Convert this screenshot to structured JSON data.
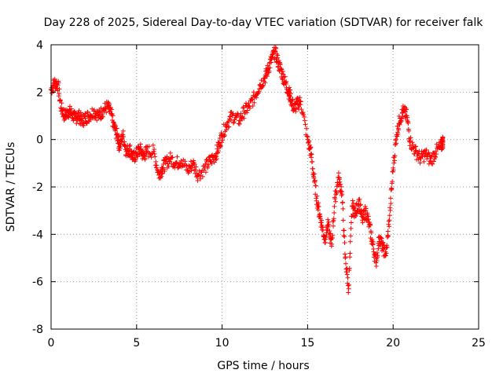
{
  "chart_data": {
    "type": "scatter",
    "title": "Day 228 of 2025, Sidereal Day-to-day VTEC variation (SDTVAR) for receiver falk",
    "xlabel": "GPS time / hours",
    "ylabel": "SDTVAR / TECUs",
    "xlim": [
      0,
      25
    ],
    "ylim": [
      -8,
      4
    ],
    "xticks": [
      0,
      5,
      10,
      15,
      20,
      25
    ],
    "yticks": [
      -8,
      -6,
      -4,
      -2,
      0,
      2,
      4
    ],
    "grid": true,
    "marker": "plus",
    "color": "#ff0000",
    "series": [
      {
        "name": "SDTVAR",
        "x": [
          0.0,
          0.2,
          0.4,
          0.6,
          0.8,
          1.0,
          1.2,
          1.4,
          1.6,
          1.8,
          2.0,
          2.2,
          2.5,
          2.8,
          3.0,
          3.3,
          3.5,
          3.7,
          3.9,
          4.0,
          4.2,
          4.4,
          4.6,
          4.8,
          5.0,
          5.2,
          5.4,
          5.6,
          6.0,
          6.3,
          6.5,
          6.7,
          7.0,
          7.3,
          7.6,
          8.0,
          8.3,
          8.6,
          9.0,
          9.3,
          9.6,
          9.8,
          10.0,
          10.3,
          10.6,
          11.0,
          11.3,
          11.6,
          11.9,
          12.2,
          12.5,
          12.7,
          12.9,
          13.1,
          13.3,
          13.5,
          13.7,
          13.9,
          14.0,
          14.2,
          14.4,
          14.6,
          15.0,
          15.2,
          15.4,
          15.6,
          15.8,
          16.0,
          16.2,
          16.4,
          16.6,
          16.8,
          17.0,
          17.2,
          17.4,
          17.6,
          17.8,
          18.0,
          18.2,
          18.4,
          18.6,
          18.8,
          19.0,
          19.2,
          19.4,
          19.6,
          19.8,
          20.0,
          20.2,
          20.4,
          20.6,
          20.8,
          21.0,
          21.3,
          21.6,
          21.9,
          22.2,
          22.5,
          22.8,
          22.9
        ],
        "y": [
          2.1,
          2.4,
          2.3,
          1.3,
          1.0,
          1.2,
          1.1,
          0.9,
          1.0,
          0.8,
          0.9,
          1.0,
          1.2,
          1.0,
          1.2,
          1.4,
          1.1,
          0.5,
          0.1,
          -0.3,
          0.2,
          -0.5,
          -0.4,
          -0.8,
          -0.6,
          -0.4,
          -0.7,
          -0.5,
          -0.5,
          -1.5,
          -1.2,
          -1.0,
          -0.8,
          -1.0,
          -0.9,
          -1.3,
          -1.0,
          -1.5,
          -1.2,
          -0.9,
          -0.7,
          -0.3,
          0.2,
          0.7,
          1.0,
          0.8,
          1.2,
          1.4,
          1.8,
          2.3,
          2.6,
          3.0,
          3.4,
          3.7,
          3.2,
          2.8,
          2.4,
          2.0,
          1.8,
          1.3,
          1.5,
          1.6,
          0.0,
          -0.6,
          -1.8,
          -2.8,
          -3.5,
          -4.2,
          -3.6,
          -4.5,
          -2.5,
          -1.6,
          -2.2,
          -5.0,
          -6.3,
          -2.8,
          -3.1,
          -2.6,
          -3.4,
          -3.0,
          -3.6,
          -4.4,
          -5.2,
          -4.1,
          -4.6,
          -4.8,
          -3.2,
          -1.2,
          0.2,
          0.9,
          1.2,
          1.0,
          -0.1,
          -0.5,
          -0.8,
          -0.6,
          -0.9,
          -0.5,
          -0.3,
          -0.1
        ]
      }
    ]
  }
}
